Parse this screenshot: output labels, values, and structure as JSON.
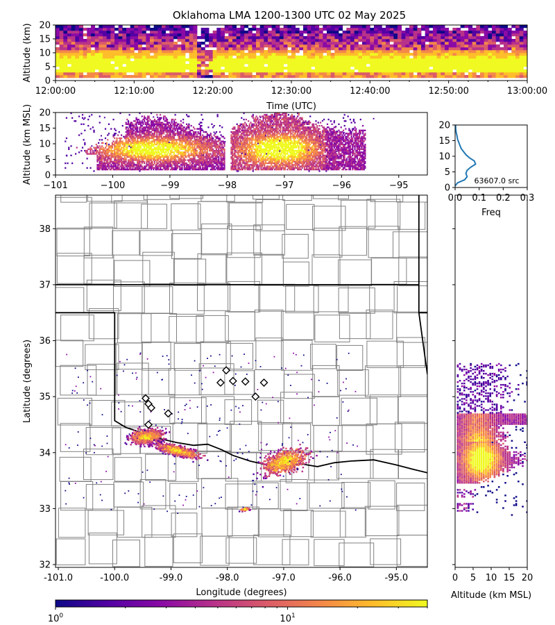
{
  "title": "Oklahoma LMA 1200-1300 UTC 02 May 2025",
  "colors": {
    "plasma": [
      "#0d0887",
      "#5302a3",
      "#8b0aa5",
      "#b83289",
      "#db5c68",
      "#f48849",
      "#febd2a",
      "#f0f921"
    ],
    "state_border": "#000000",
    "county_border": "#808080",
    "freq_line": "#1f77b4"
  },
  "chart_data": [
    {
      "id": "time_altitude",
      "type": "heatmap",
      "ylabel": "Altitude (km)",
      "xlabel": "Time (UTC)",
      "xlim": [
        "12:00:00",
        "13:00:00"
      ],
      "ylim": [
        0,
        20
      ],
      "xticks": [
        "12:00:00",
        "12:10:00",
        "12:20:00",
        "12:30:00",
        "12:40:00",
        "12:50:00",
        "13:00:00"
      ],
      "yticks": [
        "0",
        "5",
        "10",
        "15",
        "20"
      ]
    },
    {
      "id": "lon_altitude",
      "type": "heatmap",
      "ylabel": "Altitude (km MSL)",
      "xlim": [
        -101,
        -94.5
      ],
      "ylim": [
        0,
        20
      ],
      "xticks": [
        "−101",
        "−100",
        "−99",
        "−98",
        "−97",
        "−96",
        "−95"
      ],
      "yticks": [
        "0",
        "5",
        "10",
        "15",
        "20"
      ],
      "clusters": [
        {
          "lon_range": [
            -100.8,
            -98.1
          ],
          "alt_range": [
            2,
            20
          ],
          "core_alt_km": 8
        },
        {
          "lon_range": [
            -98.0,
            -95.6
          ],
          "alt_range": [
            1,
            20
          ],
          "core_alt_km": 8
        }
      ]
    },
    {
      "id": "freq_altitude",
      "type": "line",
      "xlabel": "Freq",
      "xlim": [
        0,
        0.3
      ],
      "ylim": [
        0,
        20
      ],
      "xticks": [
        "0.0",
        "0.1",
        "0.2",
        "0.3"
      ],
      "yticks": [
        "0",
        "5",
        "10",
        "15",
        "20"
      ],
      "annotation": "63607.0 src",
      "points": [
        [
          0.0,
          0.5
        ],
        [
          0.01,
          1.5
        ],
        [
          0.04,
          2.5
        ],
        [
          0.05,
          3.5
        ],
        [
          0.045,
          4.5
        ],
        [
          0.05,
          5.5
        ],
        [
          0.065,
          6.5
        ],
        [
          0.085,
          7.5
        ],
        [
          0.08,
          8.5
        ],
        [
          0.06,
          9.5
        ],
        [
          0.045,
          10.5
        ],
        [
          0.035,
          11.5
        ],
        [
          0.025,
          12.5
        ],
        [
          0.02,
          13.5
        ],
        [
          0.015,
          14.5
        ],
        [
          0.01,
          15.5
        ],
        [
          0.008,
          16.5
        ],
        [
          0.005,
          17.5
        ],
        [
          0.003,
          18.5
        ],
        [
          0.002,
          20.0
        ]
      ]
    },
    {
      "id": "plan_view",
      "type": "heatmap",
      "xlabel": "Longitude (degrees)",
      "ylabel": "Latitude (degrees)",
      "xlim": [
        -101.05,
        -94.45
      ],
      "ylim": [
        31.95,
        38.6
      ],
      "xticks": [
        "-101.0",
        "-100.0",
        "-99.0",
        "-98.0",
        "-97.0",
        "-96.0",
        "-95.0"
      ],
      "yticks": [
        "32",
        "33",
        "34",
        "35",
        "36",
        "37",
        "38"
      ],
      "clusters": [
        {
          "lon": -99.45,
          "lat": 34.3,
          "rx": 0.5,
          "ry": 0.22
        },
        {
          "lon": -98.9,
          "lat": 34.05,
          "rx": 0.7,
          "ry": 0.15
        },
        {
          "lon": -97.0,
          "lat": 33.85,
          "rx": 0.75,
          "ry": 0.35
        },
        {
          "lon": -97.7,
          "lat": 33.0,
          "rx": 0.15,
          "ry": 0.05
        }
      ],
      "stations": [
        [
          -98.02,
          35.47
        ],
        [
          -98.12,
          35.25
        ],
        [
          -97.9,
          35.28
        ],
        [
          -97.68,
          35.27
        ],
        [
          -97.35,
          35.25
        ],
        [
          -97.5,
          35.0
        ],
        [
          -99.45,
          34.97
        ],
        [
          -99.4,
          34.87
        ],
        [
          -99.35,
          34.8
        ],
        [
          -99.05,
          34.7
        ],
        [
          -99.4,
          34.5
        ]
      ],
      "state_lines": [
        [
          [
            -101.05,
            37.0
          ],
          [
            -94.6,
            37.0
          ]
        ],
        [
          [
            -94.6,
            38.6
          ],
          [
            -94.6,
            36.5
          ],
          [
            -94.45,
            36.5
          ]
        ],
        [
          [
            -101.05,
            36.5
          ],
          [
            -100.0,
            36.5
          ],
          [
            -100.0,
            34.57
          ],
          [
            -99.8,
            34.45
          ],
          [
            -99.5,
            34.35
          ],
          [
            -99.2,
            34.25
          ],
          [
            -98.9,
            34.18
          ],
          [
            -98.6,
            34.13
          ],
          [
            -98.35,
            34.15
          ],
          [
            -98.1,
            34.05
          ],
          [
            -97.9,
            33.95
          ],
          [
            -97.6,
            33.85
          ],
          [
            -97.3,
            33.78
          ],
          [
            -97.0,
            33.75
          ],
          [
            -96.7,
            33.8
          ],
          [
            -96.4,
            33.75
          ],
          [
            -96.1,
            33.82
          ],
          [
            -95.8,
            33.85
          ],
          [
            -95.4,
            33.87
          ],
          [
            -95.0,
            33.78
          ],
          [
            -94.7,
            33.7
          ],
          [
            -94.45,
            33.64
          ]
        ],
        [
          [
            -94.45,
            35.4
          ],
          [
            -94.6,
            36.5
          ]
        ]
      ]
    },
    {
      "id": "altitude_lat",
      "type": "heatmap",
      "xlabel": "Altitude (km MSL)",
      "xlim": [
        0,
        20
      ],
      "ylim": [
        31.95,
        38.6
      ],
      "xticks": [
        "0",
        "5",
        "10",
        "15",
        "20"
      ]
    },
    {
      "id": "colorbar",
      "type": "heatmap",
      "scale": "log",
      "range": [
        1,
        40
      ],
      "ticks": [
        "10<sup>0</sup>",
        "10<sup>1</sup>"
      ]
    }
  ]
}
